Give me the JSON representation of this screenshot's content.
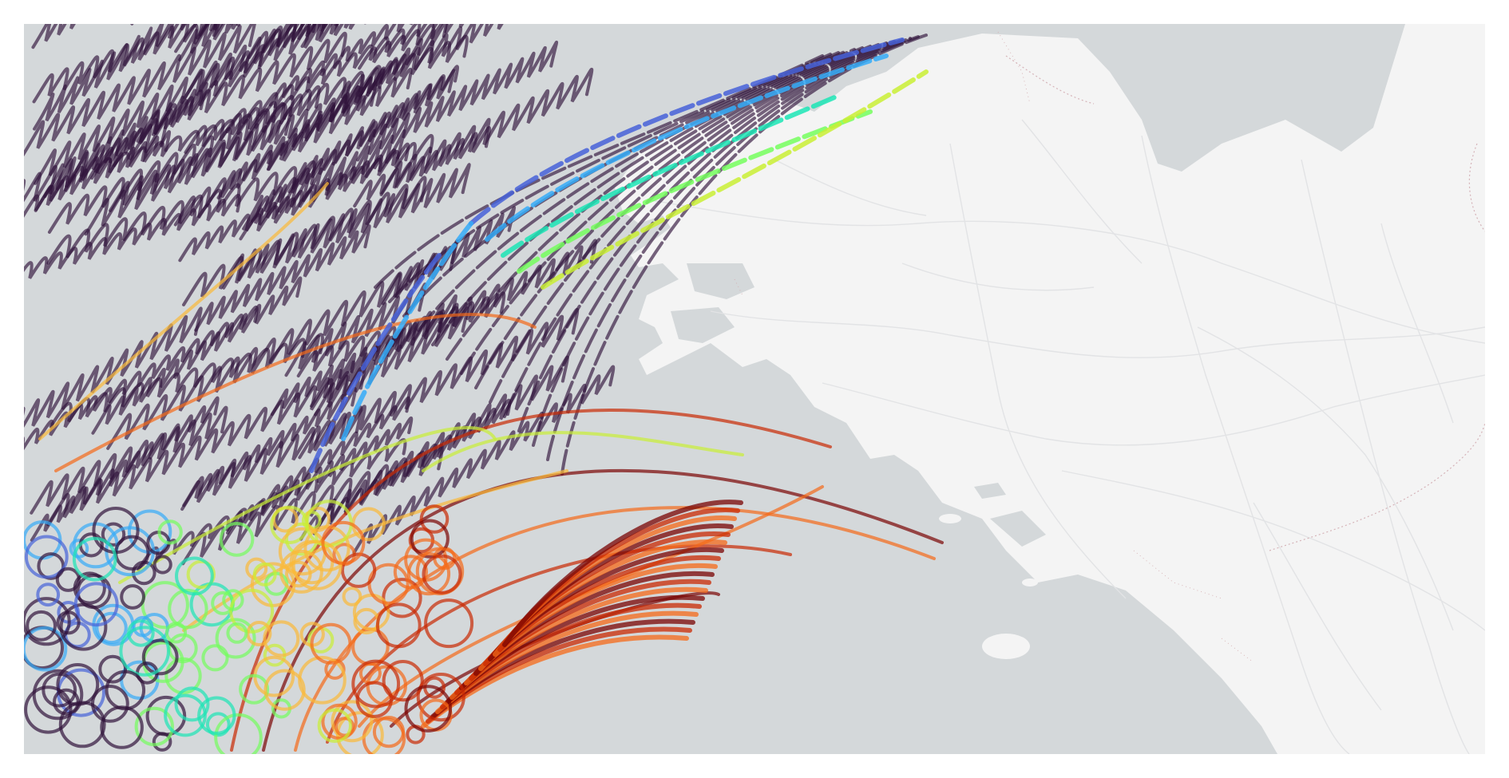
{
  "map": {
    "sea_color": "#d4d8da",
    "land_color": "#f4f4f4",
    "road_color": "#e2e3e5",
    "border_color": "#c9a1a7",
    "coastline_dots_color": "#d3a9ad"
  },
  "colormap": {
    "name": "turbo",
    "stops": [
      "#30123b",
      "#4662d8",
      "#35abf8",
      "#1be5b5",
      "#74fe5d",
      "#c9ef34",
      "#fbb938",
      "#f56918",
      "#c92903",
      "#7a0403"
    ]
  },
  "track_style": {
    "loop_tracks_color": "#30123b",
    "loop_tracks_opacity": 0.65
  }
}
